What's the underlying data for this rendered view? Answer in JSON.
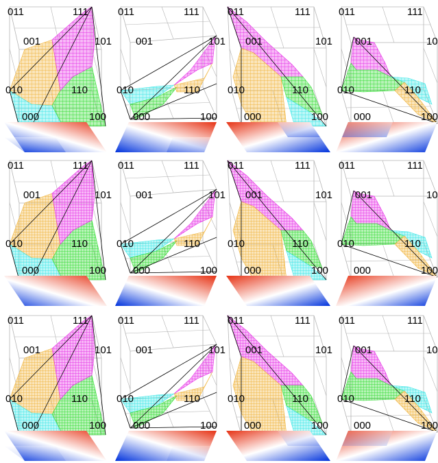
{
  "figure": {
    "vertex_labels": [
      "000",
      "001",
      "010",
      "011",
      "100",
      "101",
      "110",
      "111"
    ],
    "colors": {
      "region_a": "#f0b43c",
      "region_b": "#3ce6e6",
      "region_c": "#32dc32",
      "region_d": "#e632e6",
      "cube_line": "#b4b4b4",
      "edge_line": "#000000",
      "strip_blue": "#0032dc",
      "strip_white": "#ffffff",
      "strip_red": "#e63214",
      "strip_orange": "#f0a04a"
    },
    "rows": [
      {
        "panels": [
          {
            "view": "front",
            "surface": "split-patch"
          },
          {
            "view": "edge",
            "surface": "split-patch"
          },
          {
            "view": "side",
            "surface": "split-patch"
          },
          {
            "view": "top",
            "surface": "split-patch"
          }
        ],
        "strips": [
          {
            "gradient": "blue-white-red, two blocks"
          },
          {
            "gradient": "blue-white-red, two blocks"
          },
          {
            "gradient": "red-white-blue, two blocks"
          },
          {
            "gradient": "red-white-blue, two blocks"
          }
        ]
      },
      {
        "panels": [
          {
            "view": "front",
            "surface": "smooth"
          },
          {
            "view": "edge",
            "surface": "smooth"
          },
          {
            "view": "side",
            "surface": "smooth"
          },
          {
            "view": "top",
            "surface": "smooth"
          }
        ],
        "strips": [
          {
            "gradient": "blue-white-red, smooth"
          },
          {
            "gradient": "blue-white-red, smooth"
          },
          {
            "gradient": "red-white-blue, smooth"
          },
          {
            "gradient": "red-white-blue, smooth"
          }
        ]
      },
      {
        "panels": [
          {
            "view": "front",
            "surface": "mixed"
          },
          {
            "view": "edge",
            "surface": "mixed"
          },
          {
            "view": "side",
            "surface": "mixed"
          },
          {
            "view": "top",
            "surface": "mixed"
          }
        ],
        "strips": [
          {
            "gradient": "blue-white-red, mixed"
          },
          {
            "gradient": "blue-white-red, mixed"
          },
          {
            "gradient": "red-white-blue, mixed"
          },
          {
            "gradient": "red-white-blue, mixed"
          }
        ]
      }
    ]
  }
}
